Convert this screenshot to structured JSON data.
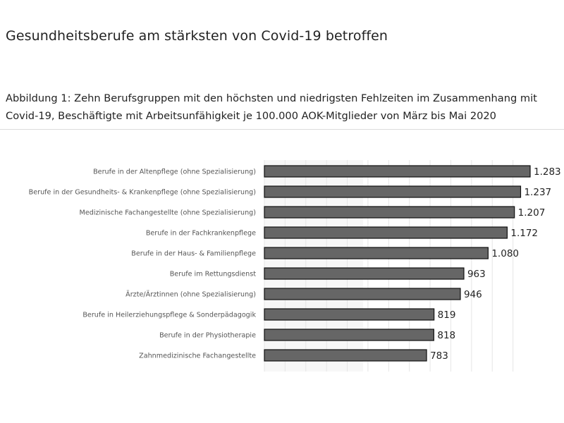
{
  "title": "Gesundheitsberufe am stärksten von Covid-19 betroffen",
  "subtitle": "Abbildung 1: Zehn Berufsgruppen mit den höchsten und niedrigsten Fehlzeiten im Zusammenhang mit Covid-19, Beschäftigte mit Arbeitsunfähigkeit je 100.000 AOK-Mitglieder von März bis Mai 2020",
  "chart_data": {
    "type": "bar",
    "orientation": "horizontal",
    "categories": [
      "Berufe in der Altenpflege (ohne Spezialisierung)",
      "Berufe in der Gesundheits- & Krankenpflege (ohne Spezialisierung)",
      "Medizinische Fachangestellte (ohne Spezialisierung)",
      "Berufe in der Fachkrankenpflege",
      "Berufe in der Haus- & Familienpflege",
      "Berufe im Rettungsdienst",
      "Ärzte/Ärztinnen (ohne Spezialisierung)",
      "Berufe in Heilerziehungspflege & Sonderpädagogik",
      "Berufe in der Physiotherapie",
      "Zahnmedizinische Fachangestellte"
    ],
    "values": [
      1283,
      1237,
      1207,
      1172,
      1080,
      963,
      946,
      819,
      818,
      783
    ],
    "value_labels": [
      "1.283",
      "1.237",
      "1.207",
      "1.172",
      "1.080",
      "963",
      "946",
      "819",
      "818",
      "783"
    ],
    "xlim": [
      0,
      1300
    ],
    "grid": true,
    "bar_color": "#666666"
  }
}
